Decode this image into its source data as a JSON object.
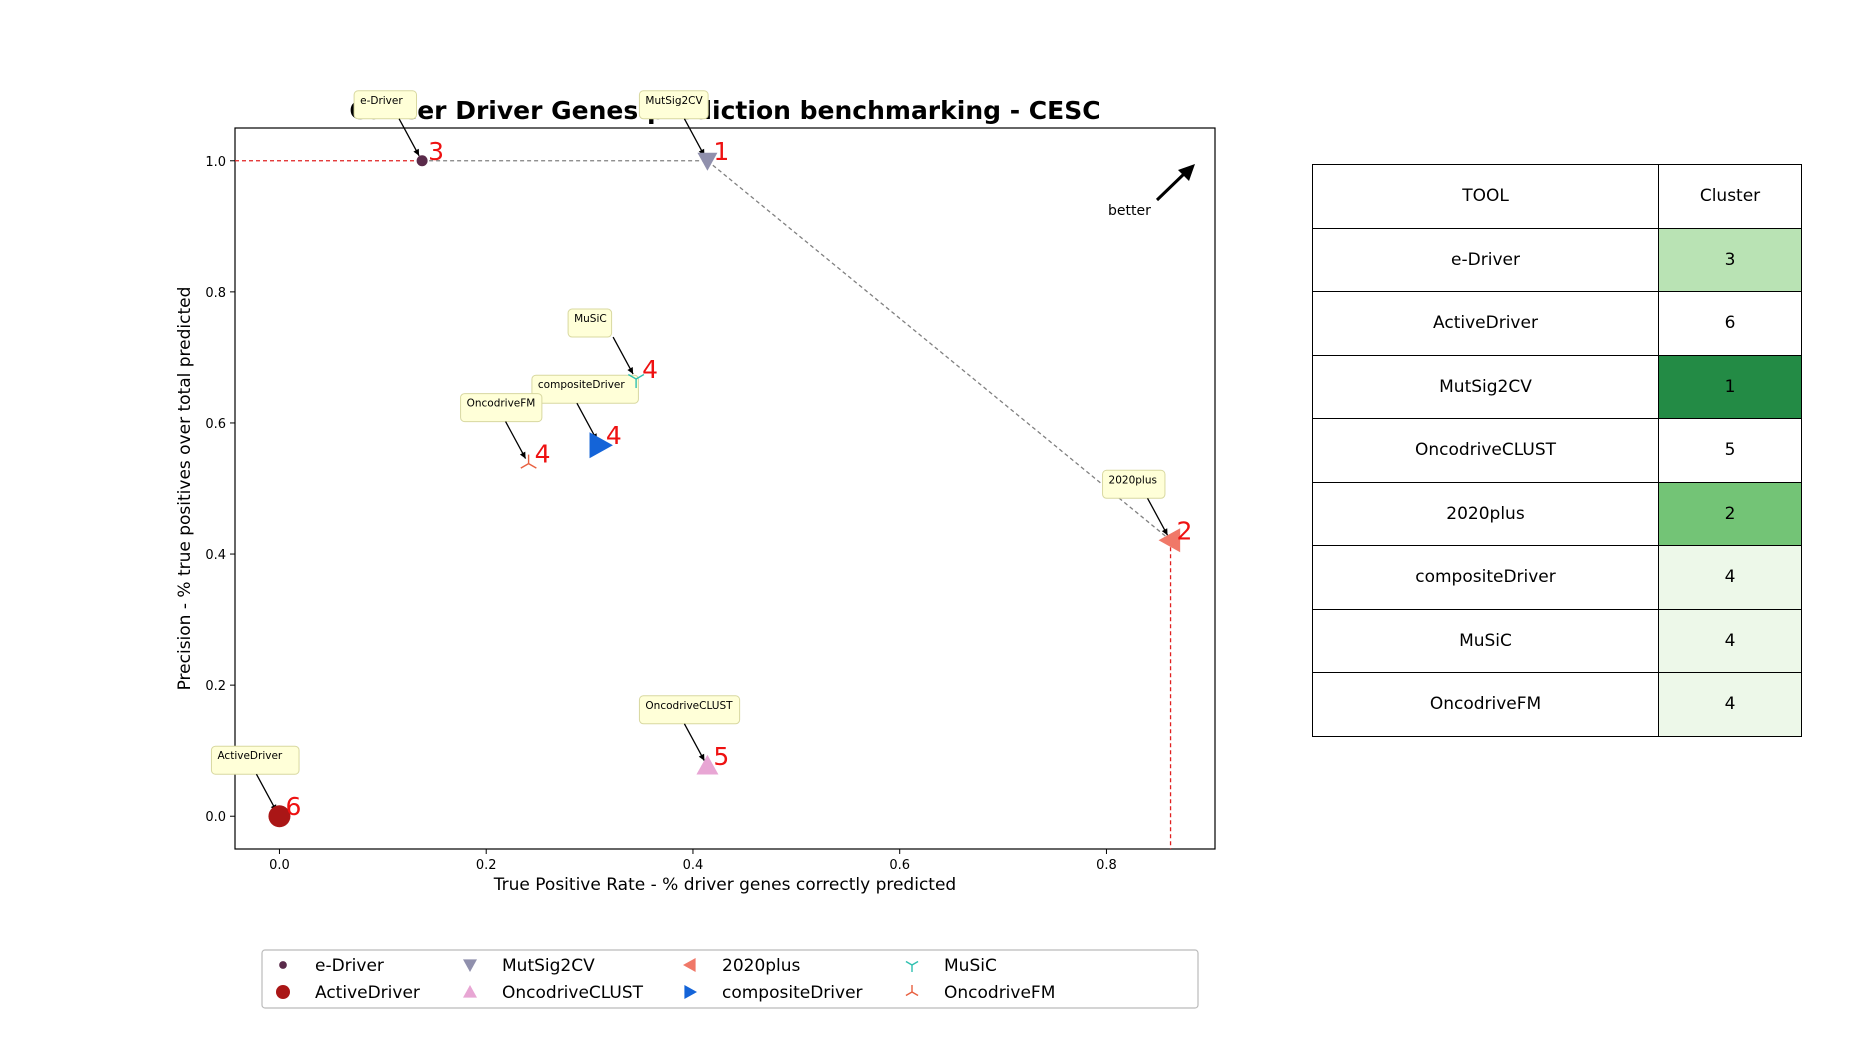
{
  "chart_data": {
    "type": "scatter",
    "title": "Cancer Driver Genes prediction benchmarking - CESC",
    "xlabel": "True Positive Rate - % driver genes correctly predicted",
    "ylabel": "Precision - % true positives over total predicted",
    "xlim": [
      -0.043,
      0.905
    ],
    "ylim": [
      -0.05,
      1.05
    ],
    "xticks": [
      "0.0",
      "0.2",
      "0.4",
      "0.6",
      "0.8"
    ],
    "yticks": [
      "0.0",
      "0.2",
      "0.4",
      "0.6",
      "0.8",
      "1.0"
    ],
    "grid": false,
    "legend_position": "bottom",
    "direction_label": "better",
    "series": [
      {
        "name": "e-Driver",
        "x": 0.138,
        "y": 1.0,
        "cluster": "3",
        "marker": "circle-small",
        "color": "#5a2a4a"
      },
      {
        "name": "ActiveDriver",
        "x": 0.0,
        "y": 0.0,
        "cluster": "6",
        "marker": "circle-large",
        "color": "#aa1616"
      },
      {
        "name": "MutSig2CV",
        "x": 0.414,
        "y": 1.0,
        "cluster": "1",
        "marker": "triangle-down",
        "color": "#9090ad"
      },
      {
        "name": "OncodriveCLUST",
        "x": 0.414,
        "y": 0.077,
        "cluster": "5",
        "marker": "triangle-up",
        "color": "#e8a6d4"
      },
      {
        "name": "2020plus",
        "x": 0.862,
        "y": 0.421,
        "cluster": "2",
        "marker": "triangle-left",
        "color": "#f07868"
      },
      {
        "name": "compositeDriver",
        "x": 0.31,
        "y": 0.566,
        "cluster": "4",
        "marker": "triangle-right",
        "color": "#1464d8"
      },
      {
        "name": "MuSiC",
        "x": 0.345,
        "y": 0.667,
        "cluster": "4",
        "marker": "tri-down",
        "color": "#30c0b0"
      },
      {
        "name": "OncodriveFM",
        "x": 0.241,
        "y": 0.538,
        "cluster": "4",
        "marker": "tri-up",
        "color": "#e86040"
      }
    ],
    "pareto_front": [
      [
        0.138,
        1.0
      ],
      [
        0.414,
        1.0
      ],
      [
        0.862,
        0.421
      ]
    ]
  },
  "table": {
    "headers": [
      "TOOL",
      "Cluster"
    ],
    "rows": [
      {
        "tool": "e-Driver",
        "cluster": "3",
        "color": "#b9e3b4"
      },
      {
        "tool": "ActiveDriver",
        "cluster": "6",
        "color": "#ffffff"
      },
      {
        "tool": "MutSig2CV",
        "cluster": "1",
        "color": "#238b45"
      },
      {
        "tool": "OncodriveCLUST",
        "cluster": "5",
        "color": "#ffffff"
      },
      {
        "tool": "2020plus",
        "cluster": "2",
        "color": "#73c476"
      },
      {
        "tool": "compositeDriver",
        "cluster": "4",
        "color": "#edf8e9"
      },
      {
        "tool": "MuSiC",
        "cluster": "4",
        "color": "#edf8e9"
      },
      {
        "tool": "OncodriveFM",
        "cluster": "4",
        "color": "#edf8e9"
      }
    ]
  }
}
